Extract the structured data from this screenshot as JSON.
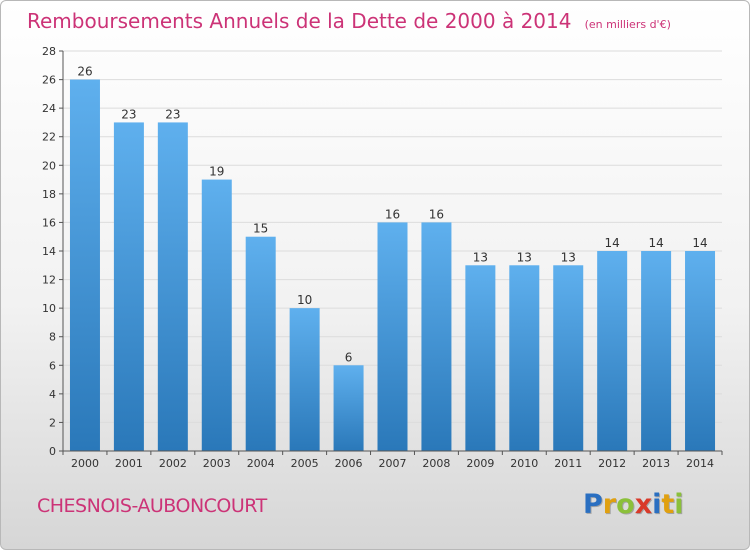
{
  "header": {
    "title": "Remboursements Annuels de la Dette de 2000 à 2014",
    "unit": "(en milliers d'€)"
  },
  "footer": {
    "commune": "CHESNOIS-AUBONCOURT",
    "logo": "Proxiti"
  },
  "colors": {
    "accent": "#cc3377",
    "bar_top": "#5fb0ee",
    "bar_bottom": "#2a78b9"
  },
  "chart_data": {
    "type": "bar",
    "title": "Remboursements Annuels de la Dette de 2000 à 2014",
    "subtitle": "(en milliers d'€)",
    "xlabel": "",
    "ylabel": "",
    "categories": [
      "2000",
      "2001",
      "2002",
      "2003",
      "2004",
      "2005",
      "2006",
      "2007",
      "2008",
      "2009",
      "2010",
      "2011",
      "2012",
      "2013",
      "2014"
    ],
    "values": [
      26,
      23,
      23,
      19,
      15,
      10,
      6,
      16,
      16,
      13,
      13,
      13,
      14,
      14,
      14
    ],
    "ylim": [
      0,
      28
    ],
    "yticks": [
      0,
      2,
      4,
      6,
      8,
      10,
      12,
      14,
      16,
      18,
      20,
      22,
      24,
      26,
      28
    ],
    "grid": true,
    "data_labels": true
  }
}
